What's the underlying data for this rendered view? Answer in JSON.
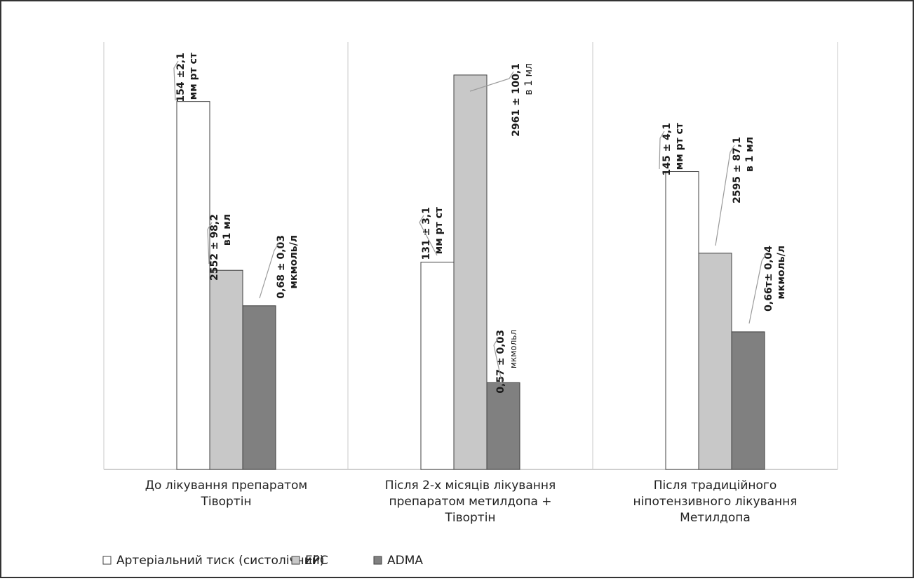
{
  "chart_data": {
    "type": "bar",
    "categories": [
      [
        "До лікування препаратом",
        "Тівортін"
      ],
      [
        "Після 2-х місяців лікування",
        "препаратом метилдопа +",
        "Тівортін"
      ],
      [
        "Після традиційного",
        "ніпотензивного лікування",
        "Метилдопа"
      ]
    ],
    "series": [
      {
        "name": "Артеріальний тиск (систолічний)",
        "color": "#ffffff",
        "values": [
          154,
          131,
          145
        ]
      },
      {
        "name": "EPC",
        "color": "#c8c8c8",
        "values": [
          2552,
          2961,
          2595
        ]
      },
      {
        "name": "ADMA",
        "color": "#808080",
        "values": [
          0.68,
          0.57,
          0.66
        ]
      }
    ],
    "relative_heights": [
      [
        0.861,
        0.466,
        0.383
      ],
      [
        0.485,
        0.923,
        0.203
      ],
      [
        0.697,
        0.506,
        0.322
      ]
    ],
    "labels": [
      [
        {
          "value": "154 ±2,1",
          "unit": "мм рт ст"
        },
        {
          "value": "2552 ± 98,2",
          "unit": "в1 мл"
        },
        {
          "value": "0,68 ± 0,03",
          "unit": "мкмоль/л"
        }
      ],
      [
        {
          "value": "131 ± 3,1",
          "unit": "мм рт ст"
        },
        {
          "value": "2961 ± 100,1",
          "unit": "в 1 мл"
        },
        {
          "value": "0,57 ± 0,03",
          "unit": "мкмольл"
        }
      ],
      [
        {
          "value": "145 ± 4,1",
          "unit": "мм рт ст"
        },
        {
          "value": "2595 ± 87,1",
          "unit": "в 1 мл"
        },
        {
          "value": "0,66т± 0,04",
          "unit": "мкмоль/л"
        }
      ]
    ],
    "legend_position": "bottom-left",
    "grid": false
  }
}
